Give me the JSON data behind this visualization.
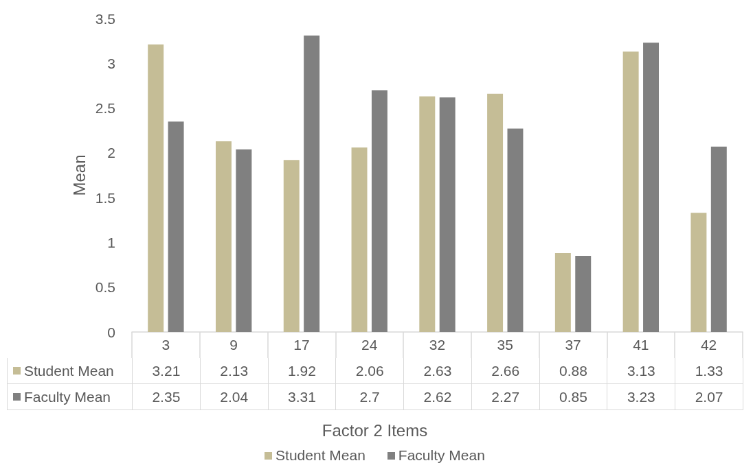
{
  "chart_data": {
    "type": "bar",
    "xlabel": "Factor 2 Items",
    "ylabel": "Mean",
    "categories": [
      "3",
      "9",
      "17",
      "24",
      "32",
      "35",
      "37",
      "41",
      "42"
    ],
    "series": [
      {
        "name": "Student Mean",
        "color": "#c5bd96",
        "values": [
          3.21,
          2.13,
          1.92,
          2.06,
          2.63,
          2.66,
          0.88,
          3.13,
          1.33
        ]
      },
      {
        "name": "Faculty Mean",
        "color": "#808080",
        "values": [
          2.35,
          2.04,
          3.31,
          2.7,
          2.62,
          2.27,
          0.85,
          3.23,
          2.07
        ]
      }
    ],
    "ylim": [
      0,
      3.5
    ],
    "yticks": [
      0,
      0.5,
      1,
      1.5,
      2,
      2.5,
      3,
      3.5
    ],
    "data_labels": true,
    "legend": "bottom",
    "grid": false
  }
}
